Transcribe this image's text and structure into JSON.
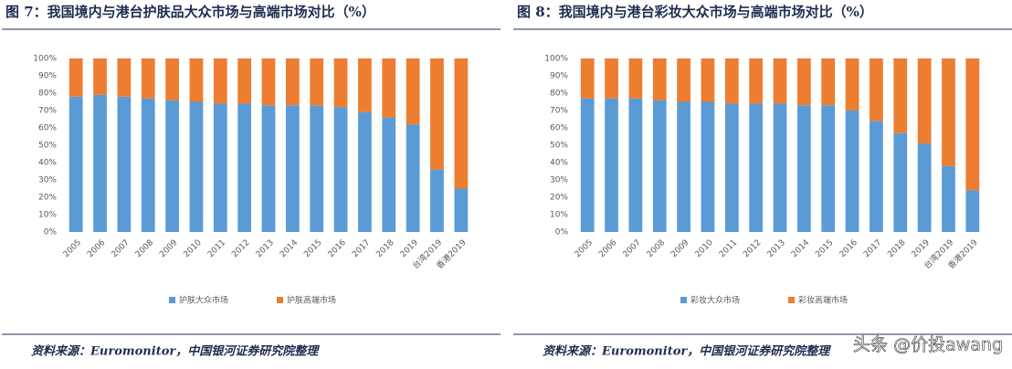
{
  "chart_data": [
    {
      "type": "bar",
      "stacked": true,
      "title": "图 7：我国境内与港台护肤品大众市场与高端市场对比（%）",
      "categories": [
        "2005",
        "2006",
        "2007",
        "2008",
        "2009",
        "2010",
        "2011",
        "2012",
        "2013",
        "2014",
        "2015",
        "2016",
        "2017",
        "2018",
        "2019",
        "台湾2019",
        "香港2019"
      ],
      "series": [
        {
          "name": "护肤大众市场",
          "color": "#5b9bd5",
          "values": [
            78,
            79,
            78,
            77,
            76,
            75,
            74,
            74,
            73,
            73,
            73,
            72,
            69,
            66,
            62,
            36,
            25
          ]
        },
        {
          "name": "护肤高端市场",
          "color": "#ed7d31",
          "values": [
            22,
            21,
            22,
            23,
            24,
            25,
            26,
            26,
            27,
            27,
            27,
            28,
            31,
            34,
            38,
            64,
            75
          ]
        }
      ],
      "ylim": [
        0,
        100
      ],
      "yticks": [
        {
          "value": 0,
          "label": "0%"
        },
        {
          "value": 10,
          "label": "10%"
        },
        {
          "value": 20,
          "label": "20%"
        },
        {
          "value": 30,
          "label": "30%"
        },
        {
          "value": 40,
          "label": "40%"
        },
        {
          "value": 50,
          "label": "50%"
        },
        {
          "value": 60,
          "label": "60%"
        },
        {
          "value": 70,
          "label": "70%"
        },
        {
          "value": 80,
          "label": "80%"
        },
        {
          "value": 90,
          "label": "90%"
        },
        {
          "value": 100,
          "label": "100%"
        }
      ],
      "legend": "bottom",
      "source": "资料来源：Euromonitor，中国银河证券研究院整理"
    },
    {
      "type": "bar",
      "stacked": true,
      "title": "图 8：我国境内与港台彩妆大众市场与高端市场对比（%）",
      "categories": [
        "2005",
        "2006",
        "2007",
        "2008",
        "2009",
        "2010",
        "2011",
        "2012",
        "2013",
        "2014",
        "2015",
        "2016",
        "2017",
        "2018",
        "2019",
        "台湾2019",
        "香港2019"
      ],
      "series": [
        {
          "name": "彩妆大众市场",
          "color": "#5b9bd5",
          "values": [
            77,
            77,
            77,
            76,
            75,
            75,
            74,
            74,
            74,
            73,
            73,
            70,
            64,
            57,
            51,
            38,
            24
          ]
        },
        {
          "name": "彩妆高端市场",
          "color": "#ed7d31",
          "values": [
            23,
            23,
            23,
            24,
            25,
            25,
            26,
            26,
            26,
            27,
            27,
            30,
            36,
            43,
            49,
            62,
            76
          ]
        }
      ],
      "ylim": [
        0,
        100
      ],
      "yticks": [
        {
          "value": 0,
          "label": "0%"
        },
        {
          "value": 10,
          "label": "10%"
        },
        {
          "value": 20,
          "label": "20%"
        },
        {
          "value": 30,
          "label": "30%"
        },
        {
          "value": 40,
          "label": "40%"
        },
        {
          "value": 50,
          "label": "50%"
        },
        {
          "value": 60,
          "label": "60%"
        },
        {
          "value": 70,
          "label": "70%"
        },
        {
          "value": 80,
          "label": "80%"
        },
        {
          "value": 90,
          "label": "90%"
        },
        {
          "value": 100,
          "label": "100%"
        }
      ],
      "legend": "bottom",
      "source": "资料来源：Euromonitor，中国银河证券研究院整理"
    }
  ],
  "watermark": "头条 @价投awang"
}
